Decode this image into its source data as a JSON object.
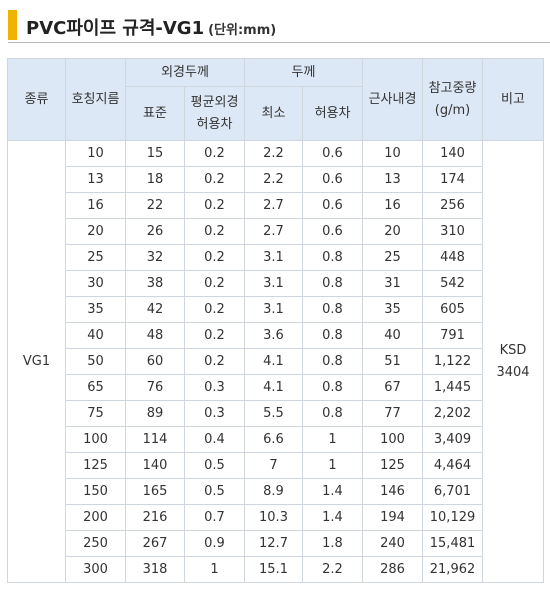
{
  "header": {
    "title": "PVC파이프 규격-VG1",
    "unit": "(단위:mm)"
  },
  "table": {
    "columns": {
      "kind": "종류",
      "nominal": "호칭지름",
      "outer": "외경두께",
      "outer_std": "표준",
      "outer_tol": [
        "평균외경",
        "허용차"
      ],
      "thickness": "두께",
      "thick_min": "최소",
      "thick_tol": "허용차",
      "inner": "근사내경",
      "weight": [
        "참고중량",
        "(g/m)"
      ],
      "note": "비고"
    },
    "kind": "VG1",
    "note": [
      "KSD",
      "3404"
    ],
    "rows": [
      [
        "10",
        "15",
        "0.2",
        "2.2",
        "0.6",
        "10",
        "140"
      ],
      [
        "13",
        "18",
        "0.2",
        "2.2",
        "0.6",
        "13",
        "174"
      ],
      [
        "16",
        "22",
        "0.2",
        "2.7",
        "0.6",
        "16",
        "256"
      ],
      [
        "20",
        "26",
        "0.2",
        "2.7",
        "0.6",
        "20",
        "310"
      ],
      [
        "25",
        "32",
        "0.2",
        "3.1",
        "0.8",
        "25",
        "448"
      ],
      [
        "30",
        "38",
        "0.2",
        "3.1",
        "0.8",
        "31",
        "542"
      ],
      [
        "35",
        "42",
        "0.2",
        "3.1",
        "0.8",
        "35",
        "605"
      ],
      [
        "40",
        "48",
        "0.2",
        "3.6",
        "0.8",
        "40",
        "791"
      ],
      [
        "50",
        "60",
        "0.2",
        "4.1",
        "0.8",
        "51",
        "1,122"
      ],
      [
        "65",
        "76",
        "0.3",
        "4.1",
        "0.8",
        "67",
        "1,445"
      ],
      [
        "75",
        "89",
        "0.3",
        "5.5",
        "0.8",
        "77",
        "2,202"
      ],
      [
        "100",
        "114",
        "0.4",
        "6.6",
        "1",
        "100",
        "3,409"
      ],
      [
        "125",
        "140",
        "0.5",
        "7",
        "1",
        "125",
        "4,464"
      ],
      [
        "150",
        "165",
        "0.5",
        "8.9",
        "1.4",
        "146",
        "6,701"
      ],
      [
        "200",
        "216",
        "0.7",
        "10.3",
        "1.4",
        "194",
        "10,129"
      ],
      [
        "250",
        "267",
        "0.9",
        "12.7",
        "1.8",
        "240",
        "15,481"
      ],
      [
        "300",
        "318",
        "1",
        "15.1",
        "2.2",
        "286",
        "21,962"
      ]
    ]
  }
}
